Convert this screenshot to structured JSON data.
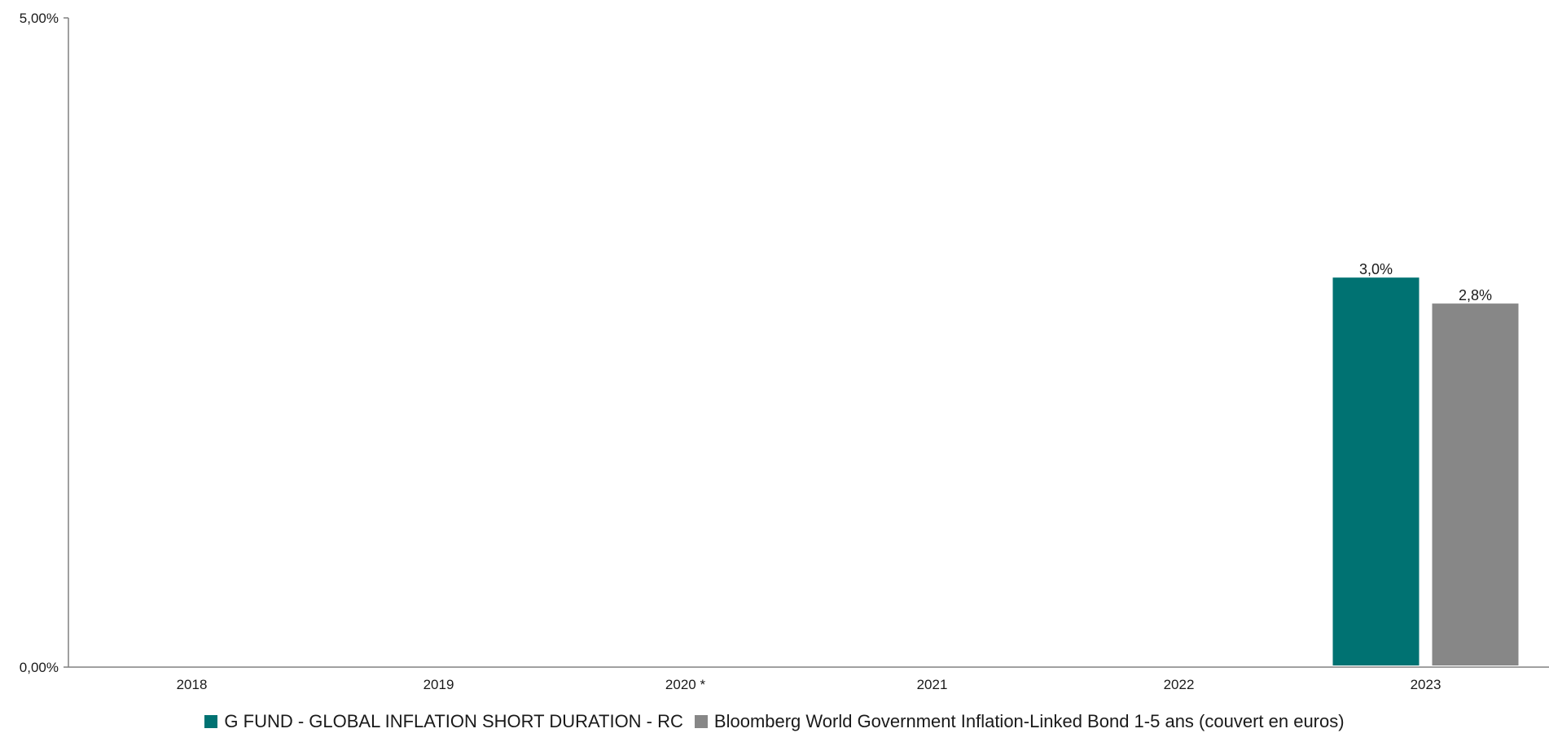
{
  "chart_data": {
    "type": "bar",
    "categories": [
      "2018",
      "2019",
      "2020 *",
      "2021",
      "2022",
      "2023"
    ],
    "series": [
      {
        "name": "G FUND - GLOBAL INFLATION SHORT DURATION - RC",
        "values": [
          null,
          null,
          null,
          null,
          null,
          3.0
        ],
        "labels": [
          "",
          "",
          "",
          "",
          "",
          "3,0%"
        ],
        "color": "#007272"
      },
      {
        "name": "Bloomberg World Government Inflation-Linked Bond 1-5 ans (couvert en euros)",
        "values": [
          null,
          null,
          null,
          null,
          null,
          2.8
        ],
        "labels": [
          "",
          "",
          "",
          "",
          "",
          "2,8%"
        ],
        "color": "#878787"
      }
    ],
    "title": "",
    "xlabel": "",
    "ylabel": "",
    "ylim": [
      0,
      5
    ],
    "yticks": [
      0,
      5
    ],
    "ytick_labels": [
      "0,00%",
      "5,00%"
    ],
    "grid": false,
    "legend_position": "bottom"
  }
}
